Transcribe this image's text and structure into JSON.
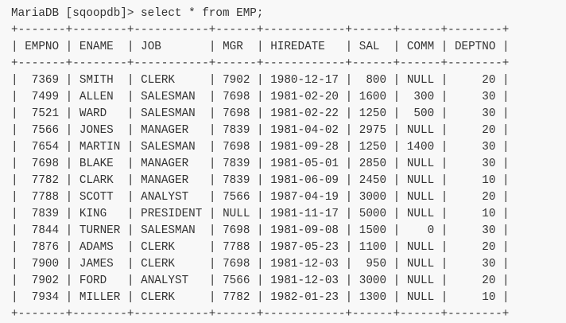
{
  "terminal": {
    "prompt": "MariaDB [sqoopdb]> ",
    "command": "select * from EMP;"
  },
  "table": {
    "columns": [
      {
        "name": "EMPNO",
        "align": "right"
      },
      {
        "name": "ENAME",
        "align": "left"
      },
      {
        "name": "JOB",
        "align": "left"
      },
      {
        "name": "MGR",
        "align": "left"
      },
      {
        "name": "HIREDATE",
        "align": "left"
      },
      {
        "name": "SAL",
        "align": "right"
      },
      {
        "name": "COMM",
        "align": "right"
      },
      {
        "name": "DEPTNO",
        "align": "right"
      }
    ],
    "rows": [
      [
        "7369",
        "SMITH",
        "CLERK",
        "7902",
        "1980-12-17",
        "800",
        "NULL",
        "20"
      ],
      [
        "7499",
        "ALLEN",
        "SALESMAN",
        "7698",
        "1981-02-20",
        "1600",
        "300",
        "30"
      ],
      [
        "7521",
        "WARD",
        "SALESMAN",
        "7698",
        "1981-02-22",
        "1250",
        "500",
        "30"
      ],
      [
        "7566",
        "JONES",
        "MANAGER",
        "7839",
        "1981-04-02",
        "2975",
        "NULL",
        "20"
      ],
      [
        "7654",
        "MARTIN",
        "SALESMAN",
        "7698",
        "1981-09-28",
        "1250",
        "1400",
        "30"
      ],
      [
        "7698",
        "BLAKE",
        "MANAGER",
        "7839",
        "1981-05-01",
        "2850",
        "NULL",
        "30"
      ],
      [
        "7782",
        "CLARK",
        "MANAGER",
        "7839",
        "1981-06-09",
        "2450",
        "NULL",
        "10"
      ],
      [
        "7788",
        "SCOTT",
        "ANALYST",
        "7566",
        "1987-04-19",
        "3000",
        "NULL",
        "20"
      ],
      [
        "7839",
        "KING",
        "PRESIDENT",
        "NULL",
        "1981-11-17",
        "5000",
        "NULL",
        "10"
      ],
      [
        "7844",
        "TURNER",
        "SALESMAN",
        "7698",
        "1981-09-08",
        "1500",
        "0",
        "30"
      ],
      [
        "7876",
        "ADAMS",
        "CLERK",
        "7788",
        "1987-05-23",
        "1100",
        "NULL",
        "20"
      ],
      [
        "7900",
        "JAMES",
        "CLERK",
        "7698",
        "1981-12-03",
        "950",
        "NULL",
        "30"
      ],
      [
        "7902",
        "FORD",
        "ANALYST",
        "7566",
        "1981-12-03",
        "3000",
        "NULL",
        "20"
      ],
      [
        "7934",
        "MILLER",
        "CLERK",
        "7782",
        "1982-01-23",
        "1300",
        "NULL",
        "10"
      ]
    ]
  }
}
